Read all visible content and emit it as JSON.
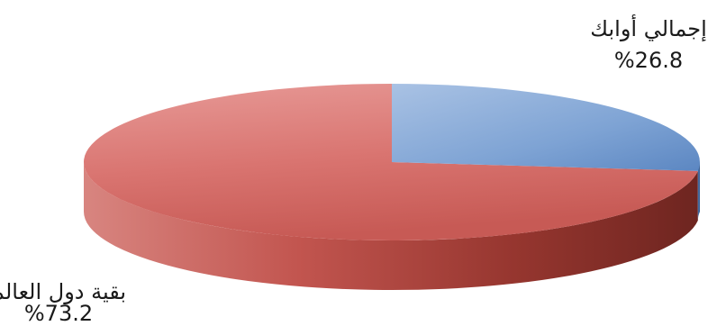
{
  "chart_data": {
    "type": "pie",
    "style": "3d",
    "slices": [
      {
        "label": "إجمالي أوابك",
        "value": 26.8,
        "value_label": "%26.8",
        "color": "#4f81bd"
      },
      {
        "label": "بقية دول العالم",
        "value": 73.2,
        "value_label": "%73.2",
        "color": "#c0504d"
      }
    ]
  }
}
